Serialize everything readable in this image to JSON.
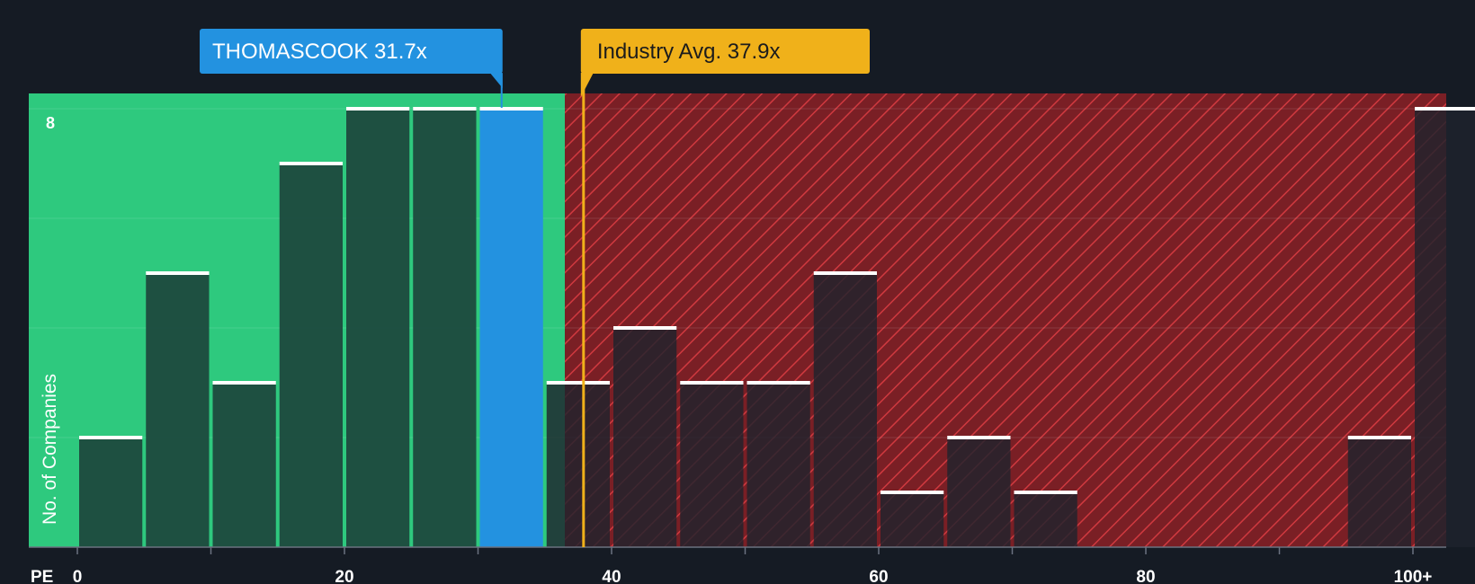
{
  "chart_data": {
    "type": "bar",
    "title": "",
    "xlabel": "PE",
    "ylabel": "No. of Companies",
    "xlim": [
      0,
      102
    ],
    "ylim": [
      0,
      8.3
    ],
    "bin_width": 5,
    "bins": [
      {
        "start": 0,
        "count": 2
      },
      {
        "start": 5,
        "count": 5
      },
      {
        "start": 10,
        "count": 3
      },
      {
        "start": 15,
        "count": 7
      },
      {
        "start": 20,
        "count": 8
      },
      {
        "start": 25,
        "count": 8
      },
      {
        "start": 30,
        "count": 8
      },
      {
        "start": 35,
        "count": 3
      },
      {
        "start": 40,
        "count": 4
      },
      {
        "start": 45,
        "count": 3
      },
      {
        "start": 50,
        "count": 3
      },
      {
        "start": 55,
        "count": 5
      },
      {
        "start": 60,
        "count": 1
      },
      {
        "start": 65,
        "count": 2
      },
      {
        "start": 70,
        "count": 1
      },
      {
        "start": 75,
        "count": 0
      },
      {
        "start": 80,
        "count": 0
      },
      {
        "start": 85,
        "count": 0
      },
      {
        "start": 90,
        "count": 0
      },
      {
        "start": 95,
        "count": 2
      },
      {
        "start": 100,
        "count": 8
      }
    ],
    "highlight_bin_start": 30,
    "fair_zone_max": 36.5,
    "x_ticks": [
      {
        "value": 0,
        "label": "0"
      },
      {
        "value": 20,
        "label": "20"
      },
      {
        "value": 40,
        "label": "40"
      },
      {
        "value": 60,
        "label": "60"
      },
      {
        "value": 80,
        "label": "80"
      },
      {
        "value": 100,
        "label": "100+"
      }
    ],
    "y_ticks": [
      {
        "value": 8,
        "label": "8"
      }
    ],
    "company": {
      "label": "THOMASCOOK 31.7x",
      "value": 31.7
    },
    "industry": {
      "label": "Industry Avg. 37.9x",
      "value": 37.9
    }
  },
  "colors": {
    "background": "#151b24",
    "fair_zone": "#2ec97e",
    "overvalued_zone": "#7a1f25",
    "hatch": "#d0393f",
    "bar_fair": "#1e4a3e",
    "bar_over": "#1f232d",
    "bar_highlight": "#2392e0",
    "bar_cap": "#ffffff",
    "company_callout": "#2392e0",
    "industry_callout": "#f0b11a",
    "industry_line": "#f0b11a",
    "text": "#ffffff",
    "industry_text": "#1c1c1c"
  }
}
